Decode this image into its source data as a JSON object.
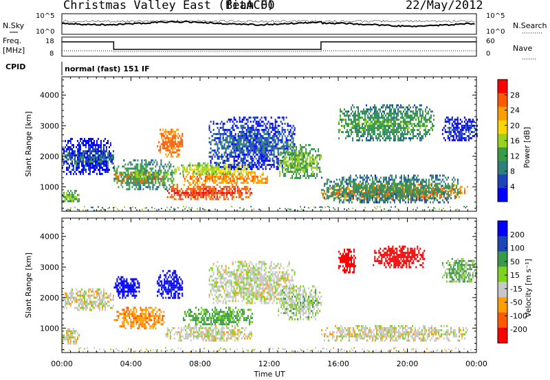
{
  "header": {
    "title": "Christmas Valley East (fitACF)",
    "beam": "Beam 00",
    "date": "22/May/2012"
  },
  "status_panels": {
    "nsky_label": "N.Sky",
    "nsearch_label": "N.Search",
    "nsky_ticks": [
      "10^5",
      "10^0"
    ],
    "nsky_right_ticks": [
      "10^5",
      "10^0"
    ],
    "freq_label_1": "Freq.",
    "freq_label_2": "[MHz]",
    "freq_ticks": [
      "18",
      "8"
    ],
    "nave_label": "Nave",
    "nave_ticks": [
      "60",
      "0"
    ],
    "cpid_label": "CPID",
    "cpid_value": "normal (fast) 151 IF"
  },
  "chart_data": [
    {
      "type": "heatmap",
      "name": "power",
      "ylabel": "Slant Range [km]",
      "xlabel": "",
      "xlim_hours": [
        0,
        24
      ],
      "ylim_km": [
        200,
        4600
      ],
      "yticks": [
        "1000",
        "2000",
        "3000",
        "4000"
      ],
      "colorbar_label": "Power [dB]",
      "colorbar_ticks": [
        "28",
        "24",
        "20",
        "16",
        "12",
        "8",
        "4"
      ],
      "colorbar_colors": [
        "#ff0000",
        "#ff5a00",
        "#ff9e00",
        "#ffd700",
        "#9ad21e",
        "#3a9a4a",
        "#2f7f7a",
        "#1d45b8",
        "#0000ff"
      ],
      "regions": [
        {
          "t0": 0.0,
          "t1": 3.0,
          "r0": 1700,
          "r1": 2200,
          "level": 11
        },
        {
          "t0": 0.0,
          "t1": 3.0,
          "r0": 1400,
          "r1": 2600,
          "level": 5
        },
        {
          "t0": 0.0,
          "t1": 1.0,
          "r0": 500,
          "r1": 900,
          "level": 12
        },
        {
          "t0": 3.0,
          "t1": 6.0,
          "r0": 1100,
          "r1": 1500,
          "level": 25
        },
        {
          "t0": 3.0,
          "t1": 6.5,
          "r0": 900,
          "r1": 1900,
          "level": 10
        },
        {
          "t0": 5.5,
          "t1": 7.0,
          "r0": 2000,
          "r1": 2900,
          "level": 24
        },
        {
          "t0": 6.0,
          "t1": 11.0,
          "r0": 600,
          "r1": 1100,
          "level": 26
        },
        {
          "t0": 7.0,
          "t1": 12.0,
          "r0": 1100,
          "r1": 1500,
          "level": 22
        },
        {
          "t0": 6.5,
          "t1": 11.0,
          "r0": 1400,
          "r1": 1800,
          "level": 14
        },
        {
          "t0": 8.5,
          "t1": 13.5,
          "r0": 1600,
          "r1": 3300,
          "level": 6
        },
        {
          "t0": 12.5,
          "t1": 15.0,
          "r0": 1300,
          "r1": 2400,
          "level": 12
        },
        {
          "t0": 15.0,
          "t1": 23.5,
          "r0": 600,
          "r1": 1100,
          "level": 23
        },
        {
          "t0": 15.0,
          "t1": 23.0,
          "r0": 500,
          "r1": 1400,
          "level": 9
        },
        {
          "t0": 16.0,
          "t1": 21.5,
          "r0": 2500,
          "r1": 3700,
          "level": 10
        },
        {
          "t0": 22.0,
          "t1": 24.0,
          "r0": 2500,
          "r1": 3300,
          "level": 5
        }
      ]
    },
    {
      "type": "heatmap",
      "name": "velocity",
      "ylabel": "Slant Range [km]",
      "xlabel": "Time UT",
      "xlim_hours": [
        0,
        24
      ],
      "ylim_km": [
        200,
        4600
      ],
      "xticks": [
        "00:00",
        "04:00",
        "08:00",
        "12:00",
        "16:00",
        "20:00",
        "00:00"
      ],
      "yticks": [
        "1000",
        "2000",
        "3000",
        "4000"
      ],
      "colorbar_label": "Velocity [m s⁻¹]",
      "colorbar_ticks": [
        "200",
        "100",
        "50",
        "15",
        "-15",
        "-50",
        "-100",
        "-200"
      ],
      "colorbar_colors": [
        "#0000ff",
        "#1d45b8",
        "#3a9a4a",
        "#7ed321",
        "#c8c8c8",
        "#ff9e00",
        "#ff5a00",
        "#ff0000"
      ],
      "regions": [
        {
          "t0": 0.0,
          "t1": 3.0,
          "r0": 1600,
          "r1": 2300,
          "level": 0
        },
        {
          "t0": 0.0,
          "t1": 1.0,
          "r0": 500,
          "r1": 1000,
          "level": 0
        },
        {
          "t0": 3.0,
          "t1": 6.0,
          "r0": 1000,
          "r1": 1700,
          "level": -40
        },
        {
          "t0": 3.0,
          "t1": 4.5,
          "r0": 2000,
          "r1": 2700,
          "level": 180
        },
        {
          "t0": 5.5,
          "t1": 7.0,
          "r0": 2000,
          "r1": 2900,
          "level": 170
        },
        {
          "t0": 6.0,
          "t1": 11.0,
          "r0": 600,
          "r1": 1100,
          "level": 0
        },
        {
          "t0": 7.0,
          "t1": 11.0,
          "r0": 1100,
          "r1": 1700,
          "level": 40
        },
        {
          "t0": 8.5,
          "t1": 13.5,
          "r0": 1800,
          "r1": 3200,
          "level": 5
        },
        {
          "t0": 12.5,
          "t1": 15.0,
          "r0": 1300,
          "r1": 2400,
          "level": 10
        },
        {
          "t0": 15.0,
          "t1": 23.5,
          "r0": 600,
          "r1": 1100,
          "level": 0
        },
        {
          "t0": 16.0,
          "t1": 17.0,
          "r0": 2800,
          "r1": 3600,
          "level": -200
        },
        {
          "t0": 18.0,
          "t1": 21.0,
          "r0": 3000,
          "r1": 3700,
          "level": -190
        },
        {
          "t0": 22.0,
          "t1": 24.0,
          "r0": 2500,
          "r1": 3300,
          "level": 30
        }
      ]
    }
  ]
}
